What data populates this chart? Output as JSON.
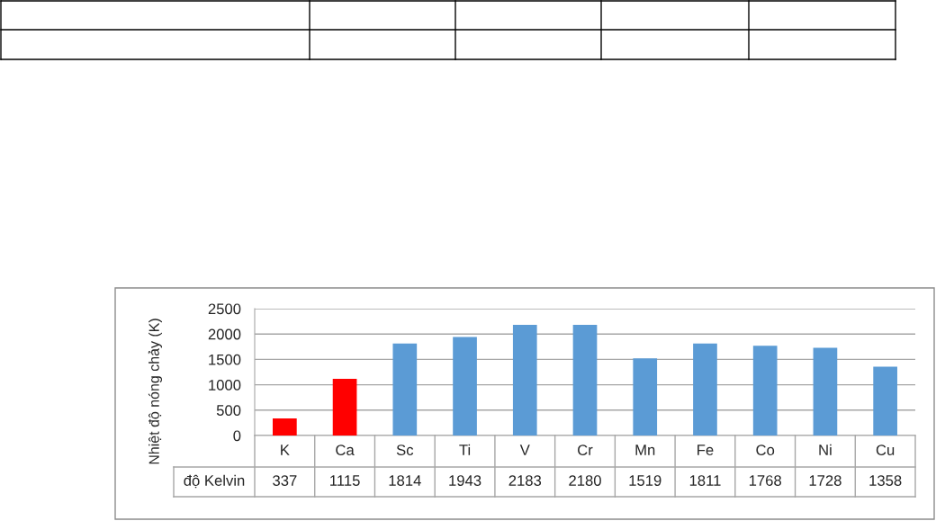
{
  "chart_data": {
    "type": "bar",
    "ylabel": "Nhiệt độ nóng chảy (K)",
    "categories": [
      "K",
      "Ca",
      "Sc",
      "Ti",
      "V",
      "Cr",
      "Mn",
      "Fe",
      "Co",
      "Ni",
      "Cu"
    ],
    "series": [
      {
        "name": "độ Kelvin",
        "colors": [
          "#ff0000",
          "#ff0000",
          "#5b9bd5",
          "#5b9bd5",
          "#5b9bd5",
          "#5b9bd5",
          "#5b9bd5",
          "#5b9bd5",
          "#5b9bd5",
          "#5b9bd5",
          "#5b9bd5"
        ],
        "values": [
          337,
          1115,
          1814,
          1943,
          2183,
          2180,
          1519,
          1811,
          1768,
          1728,
          1358
        ]
      }
    ],
    "ylim": [
      0,
      2500
    ],
    "yticks": [
      0,
      500,
      1000,
      1500,
      2000,
      2500
    ],
    "grid": "y",
    "data_labels": true
  }
}
